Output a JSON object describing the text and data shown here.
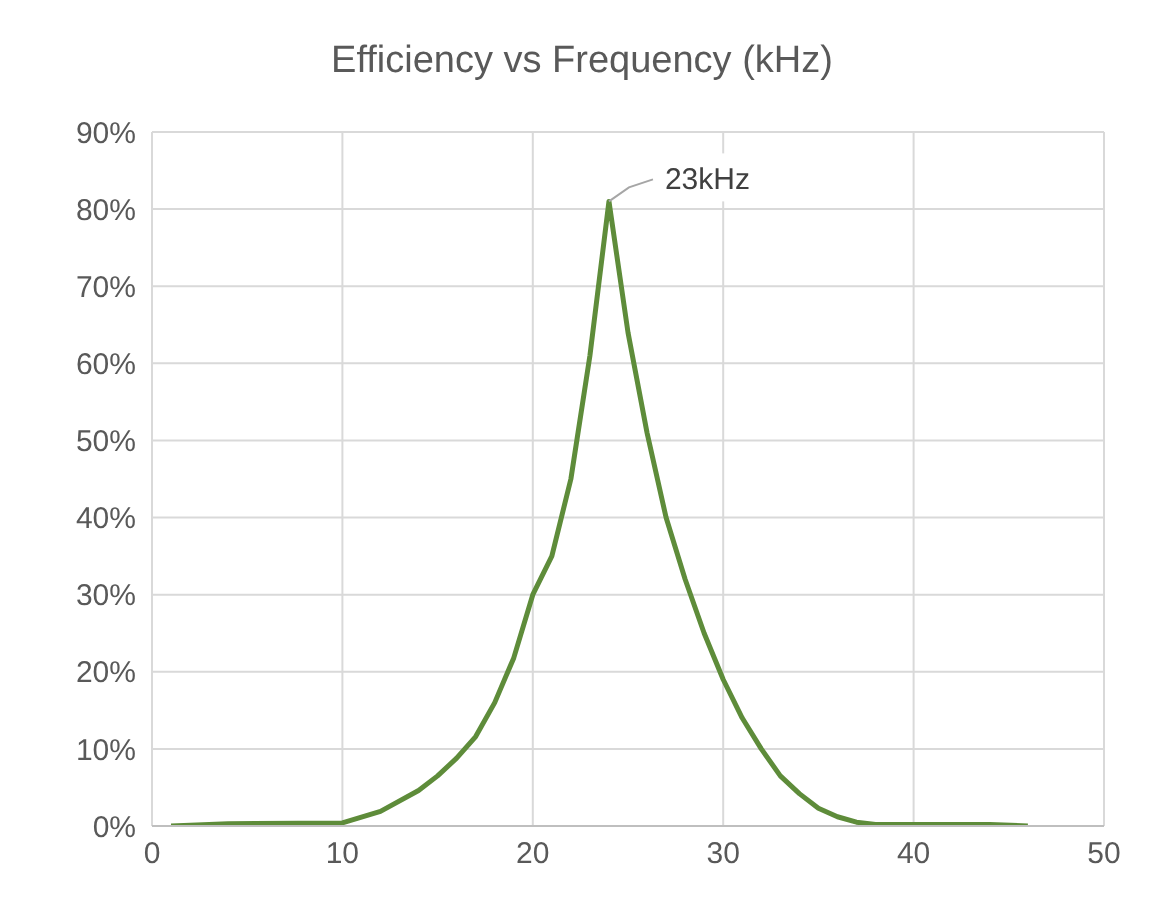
{
  "chart_data": {
    "type": "line",
    "title": "Efficiency vs Frequency (kHz)",
    "x": [
      1,
      4,
      10,
      12,
      14,
      15,
      16,
      17,
      18,
      19,
      20,
      21,
      22,
      23,
      24,
      25,
      26,
      27,
      28,
      29,
      30,
      31,
      32,
      33,
      34,
      35,
      36,
      37,
      38,
      40,
      44,
      46
    ],
    "series": [
      {
        "color": "#5e8c3a",
        "values": [
          0,
          0.3,
          0.4,
          1.9,
          4.6,
          6.5,
          8.8,
          11.6,
          16,
          21.8,
          30,
          35,
          45,
          61,
          81,
          64,
          51,
          40,
          32,
          25,
          19,
          14,
          10,
          6.5,
          4.2,
          2.3,
          1.2,
          0.5,
          0.2,
          0.2,
          0.2,
          0
        ]
      }
    ],
    "xlim": [
      0,
      50
    ],
    "xticks": [
      0,
      10,
      20,
      30,
      40,
      50
    ],
    "ylim": [
      0,
      90
    ],
    "yticks": [
      {
        "value": 0,
        "label": "0%"
      },
      {
        "value": 10,
        "label": "10%"
      },
      {
        "value": 20,
        "label": "20%"
      },
      {
        "value": 30,
        "label": "30%"
      },
      {
        "value": 40,
        "label": "40%"
      },
      {
        "value": 50,
        "label": "50%"
      },
      {
        "value": 60,
        "label": "60%"
      },
      {
        "value": 70,
        "label": "70%"
      },
      {
        "value": 80,
        "label": "80%"
      },
      {
        "value": 90,
        "label": "90%"
      }
    ],
    "grid": true,
    "marker": "none",
    "line_style": "solid",
    "annotations": [
      {
        "text": "23kHz",
        "x": 24,
        "y": 81
      }
    ]
  }
}
